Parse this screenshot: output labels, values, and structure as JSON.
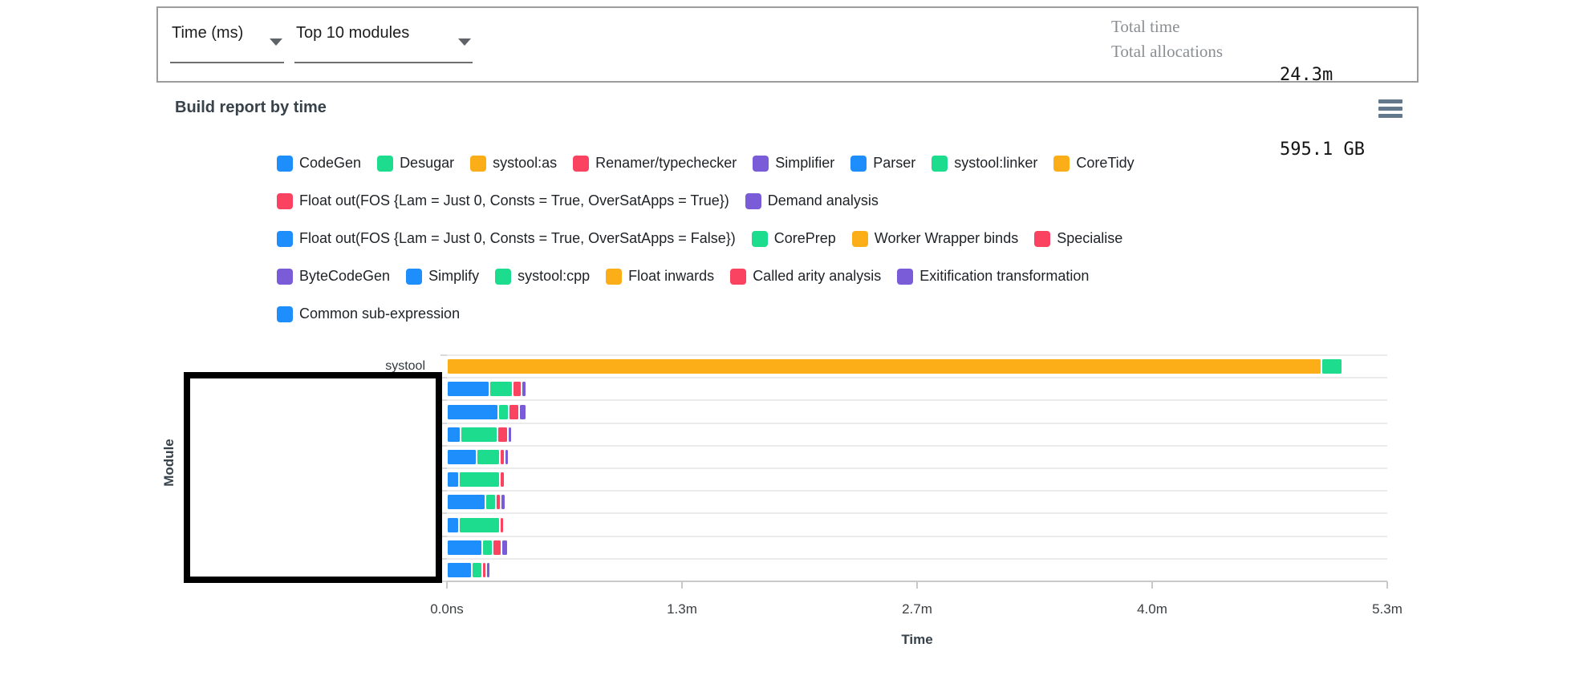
{
  "header": {
    "metric_dropdown": {
      "label": "Time (ms)"
    },
    "modules_dropdown": {
      "label": "Top 10 modules"
    },
    "total_time": {
      "label": "Total time",
      "value": "24.3m"
    },
    "total_allocations": {
      "label": "Total allocations",
      "value": "595.1 GB"
    }
  },
  "report": {
    "title": "Build report by time"
  },
  "colors": {
    "blue": "#1e8efd",
    "green": "#1edc8d",
    "amber": "#fbae17",
    "red": "#fa4360",
    "purple": "#7a5cd9"
  },
  "legend": {
    "rows": [
      [
        {
          "label": "CodeGen",
          "color": "blue"
        },
        {
          "label": "Desugar",
          "color": "green"
        },
        {
          "label": "systool:as",
          "color": "amber"
        },
        {
          "label": "Renamer/typechecker",
          "color": "red"
        },
        {
          "label": "Simplifier",
          "color": "purple"
        },
        {
          "label": "Parser",
          "color": "blue"
        },
        {
          "label": "systool:linker",
          "color": "green"
        },
        {
          "label": "CoreTidy",
          "color": "amber"
        }
      ],
      [
        {
          "label": "Float out(FOS {Lam = Just 0, Consts = True, OverSatApps = True})",
          "color": "red"
        },
        {
          "label": "Demand analysis",
          "color": "purple"
        }
      ],
      [
        {
          "label": "Float out(FOS {Lam = Just 0, Consts = True, OverSatApps = False})",
          "color": "blue"
        },
        {
          "label": "CorePrep",
          "color": "green"
        },
        {
          "label": "Worker Wrapper binds",
          "color": "amber"
        },
        {
          "label": "Specialise",
          "color": "red"
        }
      ],
      [
        {
          "label": "ByteCodeGen",
          "color": "purple"
        },
        {
          "label": "Simplify",
          "color": "blue"
        },
        {
          "label": "systool:cpp",
          "color": "green"
        },
        {
          "label": "Float inwards",
          "color": "amber"
        },
        {
          "label": "Called arity analysis",
          "color": "red"
        },
        {
          "label": "Exitification transformation",
          "color": "purple"
        }
      ],
      [
        {
          "label": "Common sub-expression",
          "color": "blue"
        }
      ]
    ]
  },
  "chart_data": {
    "type": "bar",
    "orientation": "horizontal-stacked",
    "xlabel": "Time",
    "ylabel": "Module",
    "x_ticks": [
      "0.0ns",
      "1.3m",
      "2.7m",
      "4.0m",
      "5.3m"
    ],
    "xlim_minutes": [
      0,
      5.3
    ],
    "grid": "row-separators",
    "rows": [
      {
        "label": "systool",
        "segments": [
          {
            "color": "amber",
            "minutes": 4.92
          },
          {
            "color": "green",
            "minutes": 0.11
          }
        ]
      },
      {
        "label": "",
        "segments": [
          {
            "color": "blue",
            "minutes": 0.23
          },
          {
            "color": "green",
            "minutes": 0.12
          },
          {
            "color": "red",
            "minutes": 0.04
          },
          {
            "color": "purple",
            "minutes": 0.02
          }
        ]
      },
      {
        "label": "",
        "segments": [
          {
            "color": "blue",
            "minutes": 0.28
          },
          {
            "color": "green",
            "minutes": 0.05
          },
          {
            "color": "red",
            "minutes": 0.05
          },
          {
            "color": "purple",
            "minutes": 0.03
          }
        ]
      },
      {
        "label": "",
        "segments": [
          {
            "color": "blue",
            "minutes": 0.07
          },
          {
            "color": "green",
            "minutes": 0.2
          },
          {
            "color": "red",
            "minutes": 0.05
          },
          {
            "color": "purple",
            "minutes": 0.015
          }
        ]
      },
      {
        "label": "",
        "segments": [
          {
            "color": "blue",
            "minutes": 0.16
          },
          {
            "color": "green",
            "minutes": 0.12
          },
          {
            "color": "red",
            "minutes": 0.02
          },
          {
            "color": "purple",
            "minutes": 0.015
          }
        ]
      },
      {
        "label": "",
        "segments": [
          {
            "color": "blue",
            "minutes": 0.06
          },
          {
            "color": "green",
            "minutes": 0.22
          },
          {
            "color": "red",
            "minutes": 0.02
          }
        ]
      },
      {
        "label": "",
        "segments": [
          {
            "color": "blue",
            "minutes": 0.21
          },
          {
            "color": "green",
            "minutes": 0.05
          },
          {
            "color": "red",
            "minutes": 0.02
          },
          {
            "color": "purple",
            "minutes": 0.02
          }
        ]
      },
      {
        "label": "",
        "segments": [
          {
            "color": "blue",
            "minutes": 0.06
          },
          {
            "color": "green",
            "minutes": 0.22
          },
          {
            "color": "red",
            "minutes": 0.015
          }
        ]
      },
      {
        "label": "",
        "segments": [
          {
            "color": "blue",
            "minutes": 0.19
          },
          {
            "color": "green",
            "minutes": 0.05
          },
          {
            "color": "red",
            "minutes": 0.04
          },
          {
            "color": "purple",
            "minutes": 0.025
          }
        ]
      },
      {
        "label": "",
        "segments": [
          {
            "color": "blue",
            "minutes": 0.13
          },
          {
            "color": "green",
            "minutes": 0.05
          },
          {
            "color": "red",
            "minutes": 0.015
          },
          {
            "color": "purple",
            "minutes": 0.015
          }
        ]
      }
    ],
    "redaction_note": "module names covered by black rectangle"
  }
}
